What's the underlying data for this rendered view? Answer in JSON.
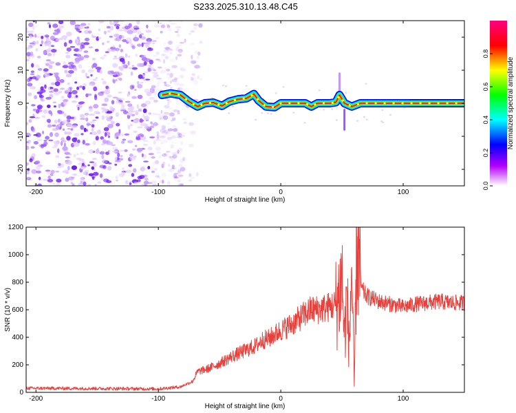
{
  "title": "S233.2025.310.13.48.C45",
  "chart_data": [
    {
      "type": "heatmap",
      "name": "spectrogram",
      "xlabel": "Height of straight line (km)",
      "ylabel": "Frequency (Hz)",
      "xlim": [
        -208,
        150
      ],
      "ylim": [
        -25,
        25
      ],
      "xticks": [
        -200,
        -100,
        0,
        100
      ],
      "yticks": [
        -20,
        -10,
        0,
        10,
        20
      ],
      "colorbar": {
        "label": "Normalized spectral amplitude",
        "range": [
          0,
          1
        ],
        "ticks": [
          0.0,
          0.2,
          0.4,
          0.6,
          0.8
        ],
        "tick_labels": [
          "0.0",
          "0.2",
          "0.4",
          "0.6",
          "0.8"
        ],
        "colors": [
          "#ffffff",
          "#b400ff",
          "#0000ff",
          "#00ffff",
          "#00ff00",
          "#ffff00",
          "#ff0000",
          "#ff0080"
        ]
      },
      "noise_region_x": [
        -208,
        -80
      ],
      "signal_x_start": -97,
      "ridge": [
        {
          "x": -97,
          "y": 2.5
        },
        {
          "x": -90,
          "y": 3.0
        },
        {
          "x": -82,
          "y": 2.5
        },
        {
          "x": -75,
          "y": 0.5
        },
        {
          "x": -68,
          "y": -1.0
        },
        {
          "x": -62,
          "y": 0.0
        },
        {
          "x": -55,
          "y": 0.2
        },
        {
          "x": -48,
          "y": -0.8
        },
        {
          "x": -42,
          "y": 0.5
        },
        {
          "x": -35,
          "y": 1.2
        },
        {
          "x": -28,
          "y": 1.5
        },
        {
          "x": -22,
          "y": 2.8
        },
        {
          "x": -18,
          "y": 0.8
        },
        {
          "x": -12,
          "y": -1.0
        },
        {
          "x": -5,
          "y": -1.2
        },
        {
          "x": 0,
          "y": 0.0
        },
        {
          "x": 10,
          "y": 0.0
        },
        {
          "x": 20,
          "y": 0.0
        },
        {
          "x": 25,
          "y": -1.0
        },
        {
          "x": 30,
          "y": 0.0
        },
        {
          "x": 40,
          "y": 0.0
        },
        {
          "x": 45,
          "y": 0.3
        },
        {
          "x": 48,
          "y": 2.5
        },
        {
          "x": 52,
          "y": 0.0
        },
        {
          "x": 58,
          "y": -1.0
        },
        {
          "x": 65,
          "y": 0.0
        },
        {
          "x": 80,
          "y": 0.0
        },
        {
          "x": 90,
          "y": 0.0
        },
        {
          "x": 100,
          "y": 0.0
        },
        {
          "x": 110,
          "y": 0.0
        },
        {
          "x": 150,
          "y": 0.0
        }
      ]
    },
    {
      "type": "line",
      "name": "snr",
      "xlabel": "Height of straight line (km)",
      "ylabel": "SNR (10 * v/v)",
      "xlim": [
        -208,
        150
      ],
      "ylim": [
        0,
        1200
      ],
      "xticks": [
        -200,
        -100,
        0,
        100
      ],
      "yticks": [
        0,
        200,
        400,
        600,
        800,
        1000,
        1200
      ],
      "color": "#e8413c",
      "series": [
        {
          "name": "SNR",
          "x": [
            -208,
            -150,
            -100,
            -82,
            -72,
            -68,
            -60,
            -50,
            -40,
            -30,
            -20,
            -15,
            -10,
            0,
            10,
            20,
            25,
            30,
            35,
            40,
            45,
            48,
            50,
            52,
            54,
            56,
            58,
            60,
            62,
            66,
            70,
            80,
            90,
            100,
            110,
            120,
            130,
            140,
            150
          ],
          "y": [
            30,
            28,
            25,
            40,
            80,
            150,
            170,
            210,
            260,
            300,
            340,
            380,
            390,
            450,
            500,
            570,
            600,
            600,
            610,
            620,
            640,
            720,
            850,
            400,
            700,
            300,
            950,
            30,
            1100,
            750,
            700,
            660,
            640,
            620,
            640,
            650,
            660,
            650,
            650
          ]
        }
      ]
    }
  ]
}
